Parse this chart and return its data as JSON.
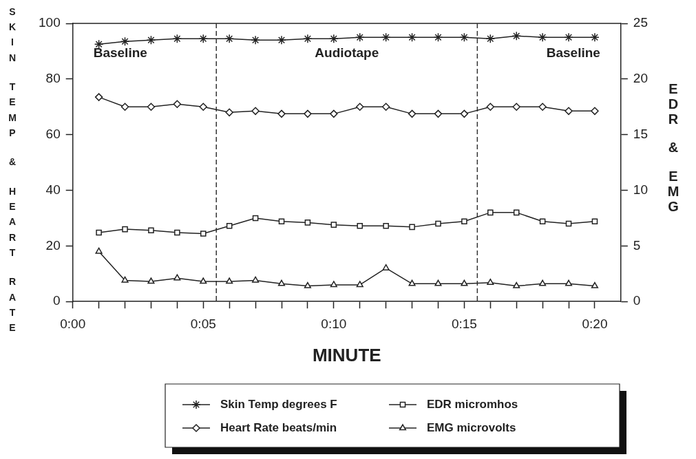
{
  "chart_data": {
    "type": "line",
    "xlabel": "MINUTE",
    "ylabel": "SKIN TEMP & HEART RATE",
    "y2label": "EDR & EMG",
    "x": [
      1,
      2,
      3,
      4,
      5,
      6,
      7,
      8,
      9,
      10,
      11,
      12,
      13,
      14,
      15,
      16,
      17,
      18,
      19,
      20
    ],
    "xlim": [
      0,
      21
    ],
    "xticks": [
      {
        "value": 0,
        "label": "0:00"
      },
      {
        "value": 1,
        "label": null
      },
      {
        "value": 2,
        "label": null
      },
      {
        "value": 3,
        "label": null
      },
      {
        "value": 4,
        "label": null
      },
      {
        "value": 5,
        "label": "0:05"
      },
      {
        "value": 6,
        "label": null
      },
      {
        "value": 7,
        "label": null
      },
      {
        "value": 8,
        "label": null
      },
      {
        "value": 9,
        "label": null
      },
      {
        "value": 10,
        "label": "0:10"
      },
      {
        "value": 11,
        "label": null
      },
      {
        "value": 12,
        "label": null
      },
      {
        "value": 13,
        "label": null
      },
      {
        "value": 14,
        "label": null
      },
      {
        "value": 15,
        "label": "0:15"
      },
      {
        "value": 16,
        "label": null
      },
      {
        "value": 17,
        "label": null
      },
      {
        "value": 18,
        "label": null
      },
      {
        "value": 19,
        "label": null
      },
      {
        "value": 20,
        "label": "0:20"
      }
    ],
    "ylim": [
      0,
      100
    ],
    "yticks": [
      0,
      20,
      40,
      60,
      80,
      100
    ],
    "y2lim": [
      0,
      25
    ],
    "y2ticks": [
      0,
      5,
      10,
      15,
      20,
      25
    ],
    "series": [
      {
        "name": "Skin Temp degrees F",
        "color": "#222222",
        "marker": "cross",
        "values": [
          92.5,
          93.5,
          94,
          94.5,
          94.5,
          94.5,
          94,
          94,
          94.5,
          94.5,
          95,
          95,
          95,
          95,
          95,
          94.5,
          95.5,
          95,
          95,
          95
        ]
      },
      {
        "name": "Heart Rate beats/min",
        "color": "#222222",
        "marker": "diamond",
        "values": [
          73.5,
          70,
          70,
          71,
          70,
          68,
          68.5,
          67.5,
          67.5,
          67.5,
          70,
          70,
          67.5,
          67.5,
          67.5,
          70,
          70,
          70,
          68.5,
          68.5
        ]
      },
      {
        "name": "EDR micromhos",
        "color": "#222222",
        "marker": "square",
        "axis": "y2",
        "values": [
          6.2,
          6.5,
          6.4,
          6.2,
          6.1,
          6.8,
          7.5,
          7.2,
          7.1,
          6.9,
          6.8,
          6.8,
          6.7,
          7,
          7.2,
          8,
          8,
          7.2,
          7,
          7.2
        ]
      },
      {
        "name": "EMG microvolts",
        "color": "#222222",
        "marker": "triangle",
        "axis": "y2",
        "values": [
          4.5,
          1.9,
          1.8,
          2.1,
          1.8,
          1.8,
          1.9,
          1.6,
          1.4,
          1.5,
          1.5,
          3,
          1.6,
          1.6,
          1.6,
          1.7,
          1.4,
          1.6,
          1.6,
          1.4
        ]
      }
    ],
    "ref_lines": [
      {
        "axis": "x",
        "value": 5.5,
        "label": null,
        "line_style": "dashed",
        "color": "#333333"
      },
      {
        "axis": "x",
        "value": 15.5,
        "label": null,
        "line_style": "dashed",
        "color": "#333333"
      }
    ],
    "annotations": [
      "Baseline",
      "Audiotape",
      "Baseline"
    ],
    "grid": false,
    "legend": "bottom",
    "line_style": "solid"
  }
}
